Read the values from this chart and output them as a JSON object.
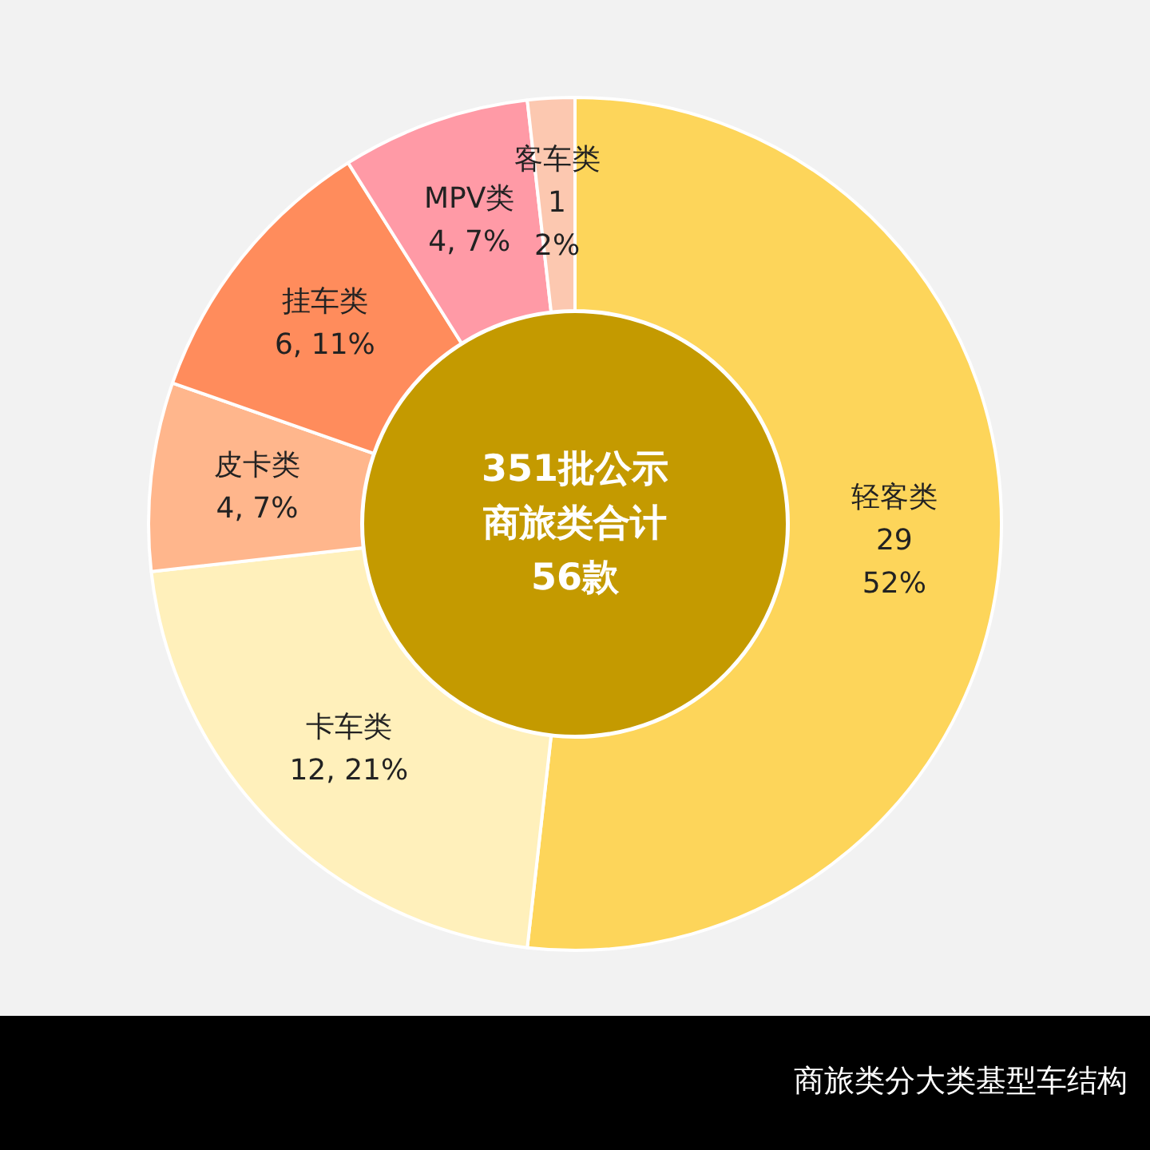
{
  "chart_data": {
    "type": "donut",
    "title": "商旅类分大类基型车结构",
    "categories": [
      "轻客类",
      "卡车类",
      "皮卡类",
      "挂车类",
      "MPV类",
      "客车类"
    ],
    "values": [
      29,
      12,
      4,
      6,
      4,
      1
    ],
    "value_labels": [
      "29\n52%",
      "12, 21%",
      "4, 7%",
      "6, 11%",
      "4, 7%",
      "1\n2%"
    ],
    "colors": [
      "#fdd55a",
      "#fff0bb",
      "#ffb68c",
      "#ff8c5c",
      "#ff9aa6",
      "#fcc8b0"
    ],
    "annotations": [
      "351批公示",
      "商旅类合计",
      "56款"
    ],
    "legend": false
  }
}
